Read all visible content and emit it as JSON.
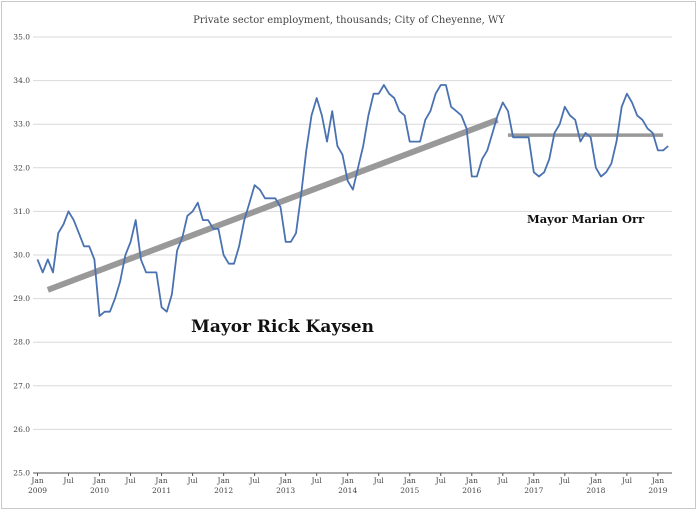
{
  "chart_data": {
    "type": "line",
    "title": "Private sector employment, thousands; City of Cheyenne, WY",
    "xlabel": "",
    "ylabel": "",
    "ylim": [
      25.0,
      35.0
    ],
    "yticks": [
      "25.0",
      "26.0",
      "27.0",
      "28.0",
      "29.0",
      "30.0",
      "31.0",
      "32.0",
      "33.0",
      "34.0",
      "35.0"
    ],
    "grid": true,
    "xticks": [
      {
        "index": 0,
        "line1": "Jan",
        "line2": "2009"
      },
      {
        "index": 6,
        "line1": "Jul",
        "line2": ""
      },
      {
        "index": 12,
        "line1": "Jan",
        "line2": "2010"
      },
      {
        "index": 18,
        "line1": "Jul",
        "line2": ""
      },
      {
        "index": 24,
        "line1": "Jan",
        "line2": "2011"
      },
      {
        "index": 30,
        "line1": "Jul",
        "line2": ""
      },
      {
        "index": 36,
        "line1": "Jan",
        "line2": "2012"
      },
      {
        "index": 42,
        "line1": "Jul",
        "line2": ""
      },
      {
        "index": 48,
        "line1": "Jan",
        "line2": "2013"
      },
      {
        "index": 54,
        "line1": "Jul",
        "line2": ""
      },
      {
        "index": 60,
        "line1": "Jan",
        "line2": "2014"
      },
      {
        "index": 66,
        "line1": "Jul",
        "line2": ""
      },
      {
        "index": 72,
        "line1": "Jan",
        "line2": "2015"
      },
      {
        "index": 78,
        "line1": "Jul",
        "line2": ""
      },
      {
        "index": 84,
        "line1": "Jan",
        "line2": "2016"
      },
      {
        "index": 90,
        "line1": "Jul",
        "line2": ""
      },
      {
        "index": 96,
        "line1": "Jan",
        "line2": "2017"
      },
      {
        "index": 102,
        "line1": "Jul",
        "line2": ""
      },
      {
        "index": 108,
        "line1": "Jan",
        "line2": "2018"
      },
      {
        "index": 114,
        "line1": "Jul",
        "line2": ""
      },
      {
        "index": 120,
        "line1": "Jan",
        "line2": "2019"
      }
    ],
    "series": [
      {
        "name": "",
        "color": "#4a72b0",
        "values": [
          29.9,
          29.6,
          29.9,
          29.6,
          30.5,
          30.7,
          31.0,
          30.8,
          30.5,
          30.2,
          30.2,
          29.9,
          28.6,
          28.7,
          28.7,
          29.0,
          29.4,
          30.0,
          30.3,
          30.8,
          29.9,
          29.6,
          29.6,
          29.6,
          28.8,
          28.7,
          29.1,
          30.1,
          30.4,
          30.9,
          31.0,
          31.2,
          30.8,
          30.8,
          30.6,
          30.6,
          30.0,
          29.8,
          29.8,
          30.2,
          30.8,
          31.2,
          31.6,
          31.5,
          31.3,
          31.3,
          31.3,
          31.1,
          30.3,
          30.3,
          30.5,
          31.4,
          32.4,
          33.2,
          33.6,
          33.2,
          32.6,
          33.3,
          32.5,
          32.3,
          31.7,
          31.5,
          32.0,
          32.5,
          33.2,
          33.7,
          33.7,
          33.9,
          33.7,
          33.6,
          33.3,
          33.2,
          32.6,
          32.6,
          32.6,
          33.1,
          33.3,
          33.7,
          33.9,
          33.9,
          33.4,
          33.3,
          33.2,
          32.9,
          31.8,
          31.8,
          32.2,
          32.4,
          32.8,
          33.2,
          33.5,
          33.3,
          32.7,
          32.7,
          32.7,
          32.7,
          31.9,
          31.8,
          31.9,
          32.2,
          32.8,
          33.0,
          33.4,
          33.2,
          33.1,
          32.6,
          32.8,
          32.7,
          32.0,
          31.8,
          31.9,
          32.1,
          32.6,
          33.4,
          33.7,
          33.5,
          33.2,
          33.1,
          32.9,
          32.8,
          32.4,
          32.4,
          32.5
        ]
      }
    ],
    "trend_lines": [
      {
        "from_index": 2,
        "to_index": 89,
        "from_value": 29.2,
        "to_value": 33.1,
        "color": "#999999"
      },
      {
        "from_index": 91,
        "to_index": 121,
        "from_value": 32.75,
        "to_value": 32.75,
        "color": "#999999"
      }
    ],
    "annotations": [
      {
        "id": "kaysen",
        "text": "Mayor Rick Kaysen"
      },
      {
        "id": "orr",
        "text": "Mayor Marian Orr"
      }
    ]
  }
}
